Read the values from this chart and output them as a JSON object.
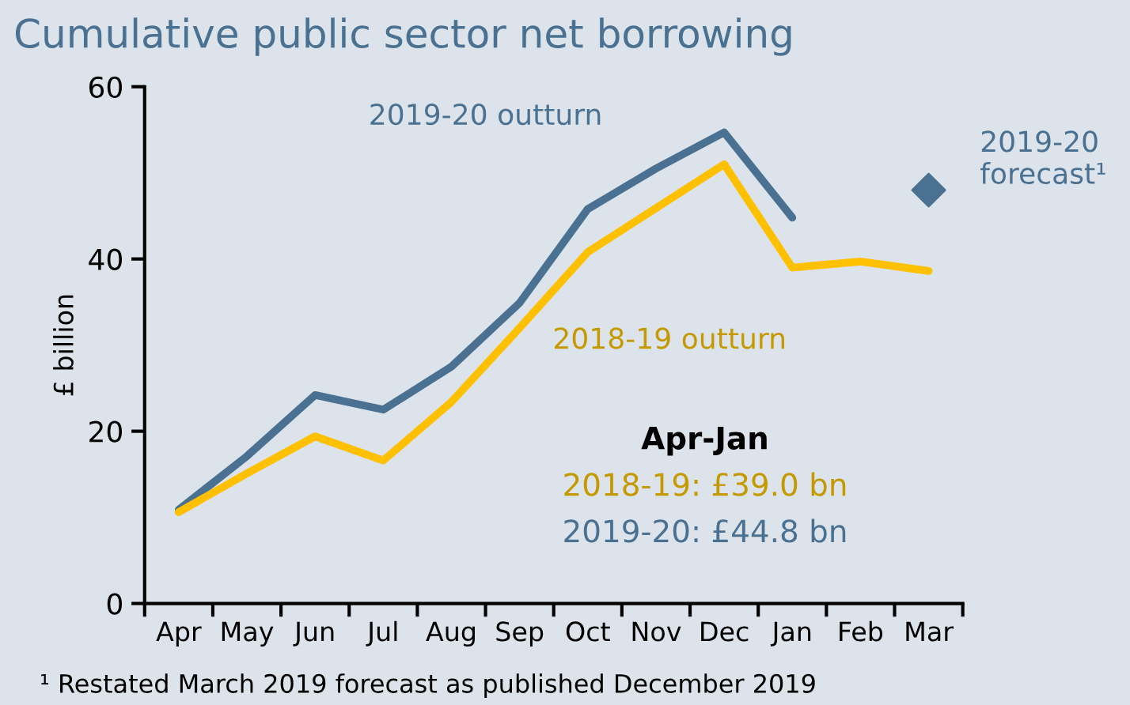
{
  "chart_data": {
    "type": "line",
    "title": "Cumulative public sector net borrowing",
    "ylabel": "£ billion",
    "categories": [
      "Apr",
      "May",
      "Jun",
      "Jul",
      "Aug",
      "Sep",
      "Oct",
      "Nov",
      "Dec",
      "Jan",
      "Feb",
      "Mar"
    ],
    "series": [
      {
        "name": "2019-20 outturn",
        "color": "#4a7191",
        "values": [
          10.9,
          17.1,
          24.2,
          22.5,
          27.5,
          34.9,
          45.8,
          50.5,
          54.7,
          44.8,
          null,
          null
        ]
      },
      {
        "name": "2018-19 outturn",
        "color": "#ffc000",
        "values": [
          10.6,
          15.1,
          19.4,
          16.6,
          23.4,
          32.0,
          40.8,
          45.9,
          51.0,
          39.0,
          39.7,
          38.6
        ]
      },
      {
        "name": "2019-20 forecast¹",
        "type": "scatter",
        "marker": "diamond",
        "color": "#4a7191",
        "values": [
          null,
          null,
          null,
          null,
          null,
          null,
          null,
          null,
          null,
          null,
          null,
          48.0
        ]
      }
    ],
    "ylim": [
      0,
      60
    ],
    "yticks": [
      0,
      20,
      40,
      60
    ],
    "grid": false,
    "legend": false,
    "marker": "none",
    "line_style": "solid",
    "annotations": [
      "Apr-Jan",
      "2018-19: £39.0 bn",
      "2019-20: £44.8 bn",
      "¹ Restated March 2019 forecast as published December 2019"
    ]
  }
}
